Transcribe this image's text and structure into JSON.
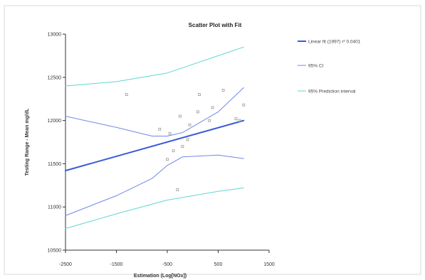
{
  "chart_data": {
    "type": "scatter",
    "title": "Scatter Plot with Fit",
    "xlabel": "Estimation (Log[NOx])",
    "ylabel": "Testing Range - Mean mg/dL",
    "xlim": [
      -2500,
      1500
    ],
    "ylim": [
      10500,
      13000
    ],
    "x_ticks": [
      -2500,
      -1500,
      -500,
      500,
      1500
    ],
    "x_tick_labels": [
      "-2500",
      "-1500",
      "-500",
      "500",
      "1500"
    ],
    "y_ticks": [
      10500,
      11000,
      11500,
      12000,
      12500,
      13000
    ],
    "y_tick_labels": [
      "10500",
      "11000",
      "11500",
      "12000",
      "12500",
      "13000"
    ],
    "grid": false,
    "legend_position": "right",
    "points": {
      "x": [
        -1300,
        -650,
        -450,
        -500,
        -380,
        -300,
        -250,
        -200,
        -100,
        -60,
        100,
        130,
        330,
        390,
        600,
        850,
        920,
        1000
      ],
      "y": [
        12300,
        11900,
        11850,
        11550,
        11650,
        11200,
        12050,
        11700,
        11780,
        11950,
        12100,
        12300,
        12000,
        12150,
        12350,
        12020,
        12000,
        12180
      ]
    },
    "series": [
      {
        "name": "Linear fit (1997) r² 0.0401",
        "color": "#3a5bd9",
        "width": 2,
        "x": [
          -2500,
          1000
        ],
        "y": [
          11420,
          12000
        ]
      },
      {
        "name": "95% CI",
        "color": "#6f88e6",
        "width": 1,
        "x": [
          -2500,
          -1500,
          -800,
          -500,
          -200,
          500,
          1000
        ],
        "y": [
          12050,
          11920,
          11820,
          11820,
          11860,
          12100,
          12380
        ]
      },
      {
        "name": "95% CI",
        "color": "#6f88e6",
        "width": 1,
        "x": [
          -2500,
          -1500,
          -800,
          -500,
          -200,
          500,
          1000
        ],
        "y": [
          10900,
          11130,
          11330,
          11480,
          11580,
          11600,
          11560
        ]
      },
      {
        "name": "95% Prediction interval",
        "color": "#5fd6d0",
        "width": 1,
        "x": [
          -2500,
          -1500,
          -500,
          500,
          1000
        ],
        "y": [
          12400,
          12450,
          12550,
          12750,
          12850
        ]
      },
      {
        "name": "95% Prediction interval",
        "color": "#5fd6d0",
        "width": 1,
        "x": [
          -2500,
          -1500,
          -500,
          500,
          1000
        ],
        "y": [
          10750,
          10920,
          11080,
          11180,
          11220
        ]
      }
    ],
    "legend": [
      {
        "label": "Linear fit (1997) r² 0.0401",
        "color": "#3a5bd9",
        "width": 2
      },
      {
        "label": "95% CI",
        "color": "#6f88e6",
        "width": 1
      },
      {
        "label": "95% Prediction interval",
        "color": "#5fd6d0",
        "width": 1
      }
    ]
  }
}
